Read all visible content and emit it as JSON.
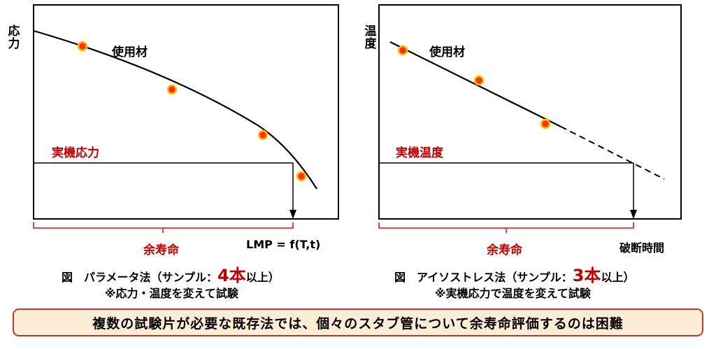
{
  "left_panel": {
    "y_axis_label": "応力",
    "material_label": "使用材",
    "actual_condition_label": "実機応力",
    "remaining_life_label": "余寿命",
    "x_axis_label": "LMP = f(T,t)",
    "caption": {
      "prefix": "図　パラメータ法（サンプル：",
      "count": "4本",
      "suffix": "以上）",
      "note": "※応力・温度を変えて試験"
    }
  },
  "right_panel": {
    "y_axis_label": "温度",
    "material_label": "使用材",
    "actual_condition_label": "実機温度",
    "remaining_life_label": "余寿命",
    "x_axis_label": "破断時間",
    "caption": {
      "prefix": "図　アイソストレス法（サンプル：",
      "count": "3本",
      "suffix": "以上）",
      "note": "※実機応力で温度を変えて試験"
    }
  },
  "summary_box": {
    "text": "複数の試験片が必要な既存法では、個々のスタブ管について余寿命評価するのは困難"
  },
  "colors": {
    "highlight_red": "#c00000",
    "bracket_red": "#e03030",
    "point_fill": "#ff3300",
    "point_outline": "#ffc000",
    "box_border": "#c0392b",
    "box_fill": "#fdecd6"
  }
}
